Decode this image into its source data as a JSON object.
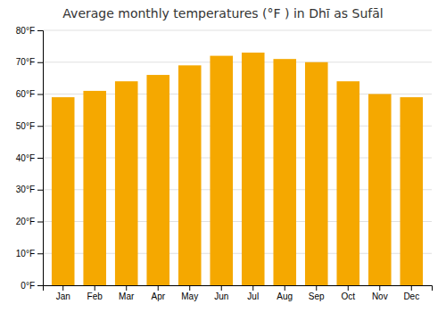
{
  "chart_data": {
    "type": "bar",
    "title": "Average monthly temperatures (°F ) in Dhī as Sufāl",
    "categories": [
      "Jan",
      "Feb",
      "Mar",
      "Apr",
      "May",
      "Jun",
      "Jul",
      "Aug",
      "Sep",
      "Oct",
      "Nov",
      "Dec"
    ],
    "values": [
      59,
      61,
      64,
      66,
      69,
      72,
      73,
      71,
      70,
      64,
      60,
      59
    ],
    "color": "#F5A800",
    "ylim": [
      0,
      80
    ],
    "yticks": [
      {
        "value": 0,
        "label": "0°F"
      },
      {
        "value": 10,
        "label": "10°F"
      },
      {
        "value": 20,
        "label": "20°F"
      },
      {
        "value": 30,
        "label": "30°F"
      },
      {
        "value": 40,
        "label": "40°F"
      },
      {
        "value": 50,
        "label": "50°F"
      },
      {
        "value": 60,
        "label": "60°F"
      },
      {
        "value": 70,
        "label": "70°F"
      },
      {
        "value": 80,
        "label": "80°F"
      }
    ],
    "grid": true
  }
}
